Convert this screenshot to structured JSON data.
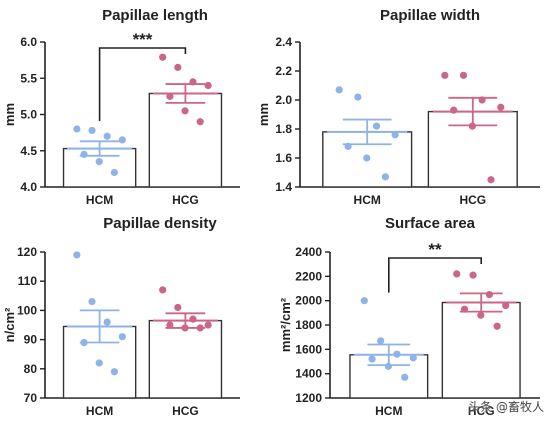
{
  "watermark": "头条 @畜牧人",
  "colors": {
    "HCM": "#8fb2e8",
    "HCG": "#cc6685",
    "bar_fill": "#ffffff",
    "bar_stroke": "#333333"
  },
  "chart_data": [
    {
      "type": "bar",
      "title": "Papillae length",
      "ylabel": "mm",
      "ylim": [
        4.0,
        6.0
      ],
      "yticks": [
        "4.0",
        "4.5",
        "5.0",
        "5.5",
        "6.0"
      ],
      "categories": [
        "HCM",
        "HCG"
      ],
      "values": [
        4.53,
        5.29
      ],
      "sem": [
        0.1,
        0.13
      ],
      "points": [
        [
          4.8,
          4.78,
          4.7,
          4.65,
          4.45,
          4.35,
          4.2
        ],
        [
          5.79,
          5.65,
          5.45,
          5.4,
          5.25,
          5.05,
          4.9
        ]
      ],
      "significance": "***"
    },
    {
      "type": "bar",
      "title": "Papillae width",
      "ylabel": "mm",
      "ylim": [
        1.4,
        2.4
      ],
      "yticks": [
        "1.4",
        "1.6",
        "1.8",
        "2.0",
        "2.2",
        "2.4"
      ],
      "categories": [
        "HCM",
        "HCG"
      ],
      "values": [
        1.78,
        1.92
      ],
      "sem": [
        0.085,
        0.095
      ],
      "points": [
        [
          2.07,
          2.02,
          1.82,
          1.76,
          1.68,
          1.6,
          1.47
        ],
        [
          2.17,
          2.17,
          2.0,
          1.95,
          1.93,
          1.82,
          1.45
        ]
      ]
    },
    {
      "type": "bar",
      "title": "Papillae density",
      "ylabel": "n/cm²",
      "ylim": [
        70,
        120
      ],
      "yticks": [
        "70",
        "80",
        "90",
        "100",
        "110",
        "120"
      ],
      "categories": [
        "HCM",
        "HCG"
      ],
      "values": [
        94.5,
        96.5
      ],
      "sem": [
        5.5,
        2.5
      ],
      "points": [
        [
          119,
          103,
          96,
          91,
          89,
          82,
          79
        ],
        [
          107,
          101,
          97,
          95,
          95,
          94,
          94
        ]
      ]
    },
    {
      "type": "bar",
      "title": "Surface area",
      "ylabel": "mm²/cm²",
      "ylim": [
        1200,
        2400
      ],
      "yticks": [
        "1200",
        "1400",
        "1600",
        "1800",
        "2000",
        "2200",
        "2400"
      ],
      "categories": [
        "HCM",
        "HCG"
      ],
      "values": [
        1555,
        1985
      ],
      "sem": [
        85,
        75
      ],
      "points": [
        [
          2000,
          1670,
          1560,
          1530,
          1520,
          1460,
          1370
        ],
        [
          2220,
          2210,
          2050,
          1960,
          1930,
          1880,
          1790
        ]
      ],
      "significance": "**"
    }
  ]
}
